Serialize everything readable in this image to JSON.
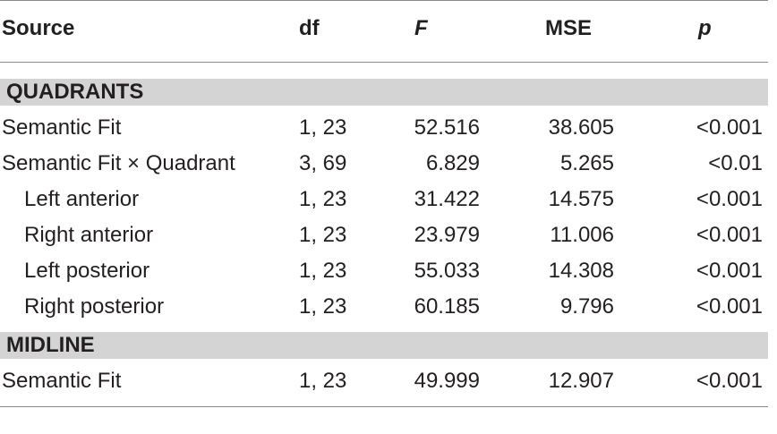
{
  "table": {
    "columns": [
      "Source",
      "df",
      "F",
      "MSE",
      "p"
    ],
    "sections": [
      {
        "title": "QUADRANTS",
        "rows": [
          {
            "source": "Semantic Fit",
            "indent": false,
            "df": "1, 23",
            "F": "52.516",
            "MSE": "38.605",
            "p": "<0.001"
          },
          {
            "source": "Semantic Fit × Quadrant",
            "indent": false,
            "df": "3, 69",
            "F": "6.829",
            "MSE": "5.265",
            "p": "<0.01"
          },
          {
            "source": "Left anterior",
            "indent": true,
            "df": "1, 23",
            "F": "31.422",
            "MSE": "14.575",
            "p": "<0.001"
          },
          {
            "source": "Right anterior",
            "indent": true,
            "df": "1, 23",
            "F": "23.979",
            "MSE": "11.006",
            "p": "<0.001"
          },
          {
            "source": "Left posterior",
            "indent": true,
            "df": "1, 23",
            "F": "55.033",
            "MSE": "14.308",
            "p": "<0.001"
          },
          {
            "source": "Right posterior",
            "indent": true,
            "df": "1, 23",
            "F": "60.185",
            "MSE": "9.796",
            "p": "<0.001"
          }
        ]
      },
      {
        "title": "MIDLINE",
        "rows": [
          {
            "source": "Semantic Fit",
            "indent": false,
            "df": "1, 23",
            "F": "49.999",
            "MSE": "12.907",
            "p": "<0.001"
          }
        ]
      }
    ]
  }
}
